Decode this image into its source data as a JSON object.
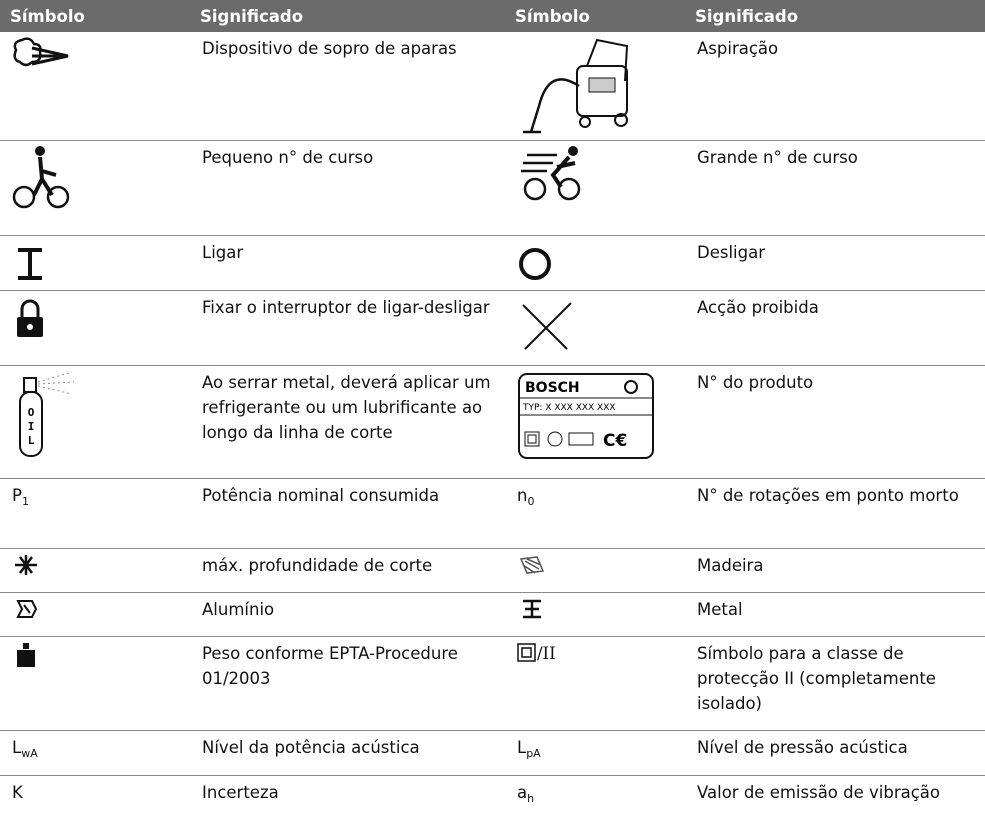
{
  "table": {
    "header": [
      "Símbolo",
      "Significado",
      "Símbolo",
      "Significado"
    ],
    "rows": [
      {
        "left": {
          "meaning": "Dispositivo de sopro de aparas"
        },
        "right": {
          "meaning": "Aspiração"
        }
      },
      {
        "left": {
          "meaning": "Pequeno n° de curso"
        },
        "right": {
          "meaning": "Grande n° de curso"
        }
      },
      {
        "left": {
          "meaning": "Ligar"
        },
        "right": {
          "meaning": "Desligar"
        }
      },
      {
        "left": {
          "meaning": "Fixar o interruptor de ligar-desligar"
        },
        "right": {
          "meaning": "Acção proibida"
        }
      },
      {
        "left": {
          "meaning": "Ao serrar metal, deverá aplicar um refrigerante ou um lubrificante ao longo da linha de corte",
          "icon_text": [
            "O",
            "I",
            "L"
          ]
        },
        "right": {
          "meaning": "N° do produto",
          "icon_text": [
            "BOSCH",
            "TYP:  X XXX XXX XXX"
          ]
        }
      },
      {
        "left": {
          "symbol": {
            "base": "P",
            "sub": "1"
          },
          "meaning": "Potência nominal consumida"
        },
        "right": {
          "symbol": {
            "base": "n",
            "sub": "0"
          },
          "meaning": "N° de rotações em ponto morto"
        }
      },
      {
        "left": {
          "meaning": "máx. profundidade de corte"
        },
        "right": {
          "meaning": "Madeira"
        }
      },
      {
        "left": {
          "meaning": "Alumínio"
        },
        "right": {
          "meaning": "Metal"
        }
      },
      {
        "left": {
          "meaning": "Peso conforme EPTA-Procedure 01/2003"
        },
        "right": {
          "symbol": {
            "base": "/II"
          },
          "meaning": "Símbolo para a classe de protecção II (completamente isolado)"
        }
      },
      {
        "left": {
          "symbol": {
            "base": "L",
            "sub": "wA"
          },
          "meaning": "Nível da potência acústica"
        },
        "right": {
          "symbol": {
            "base": "L",
            "sub": "pA"
          },
          "meaning": "Nível de pressão acústica"
        }
      },
      {
        "left": {
          "symbol": {
            "base": "K"
          },
          "meaning": "Incerteza"
        },
        "right": {
          "symbol": {
            "base": "a",
            "sub": "h"
          },
          "meaning": "Valor de emissão de vibração"
        }
      }
    ]
  }
}
